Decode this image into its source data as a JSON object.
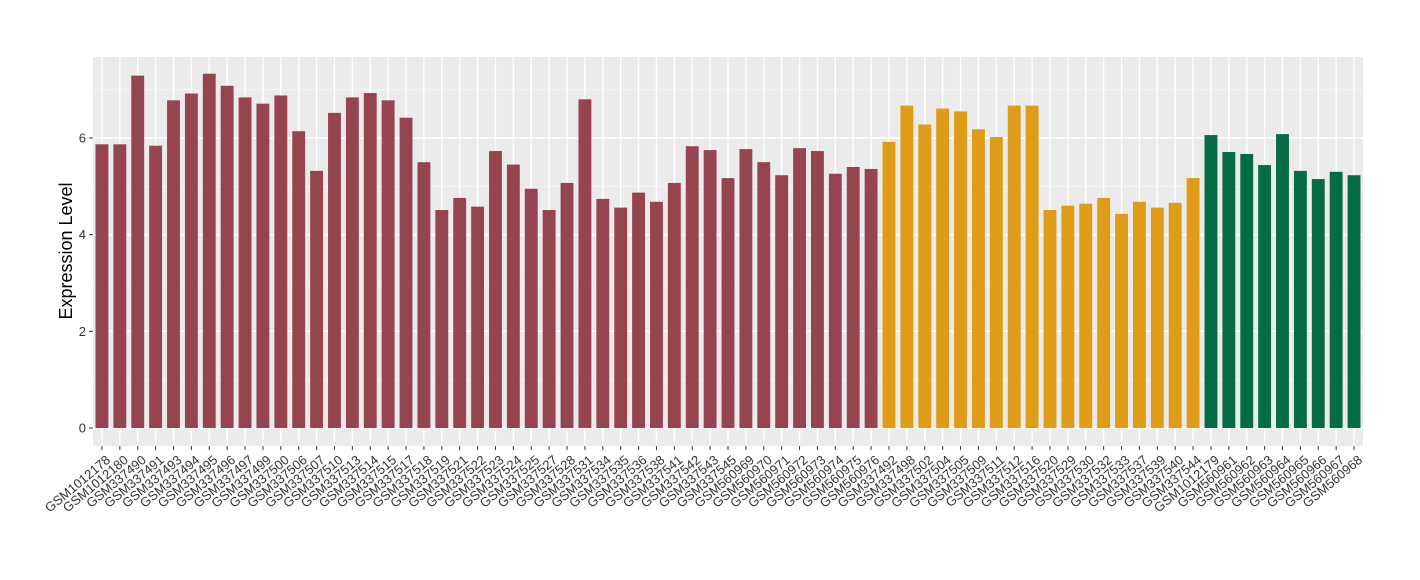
{
  "chart_data": {
    "type": "bar",
    "ylabel": "Expression Level",
    "ylim": [
      0,
      7.6
    ],
    "y_ticks": [
      0,
      2,
      4,
      6
    ],
    "grid": true,
    "colors": {
      "group1": "#974451",
      "group2": "#DE9C19",
      "group3": "#046C45"
    },
    "categories": [
      "GSM1012178",
      "GSM1012180",
      "GSM337490",
      "GSM337491",
      "GSM337493",
      "GSM337494",
      "GSM337495",
      "GSM337496",
      "GSM337497",
      "GSM337499",
      "GSM337500",
      "GSM337506",
      "GSM337507",
      "GSM337510",
      "GSM337513",
      "GSM337514",
      "GSM337515",
      "GSM337517",
      "GSM337518",
      "GSM337519",
      "GSM337521",
      "GSM337522",
      "GSM337523",
      "GSM337524",
      "GSM337525",
      "GSM337527",
      "GSM337528",
      "GSM337531",
      "GSM337534",
      "GSM337535",
      "GSM337536",
      "GSM337538",
      "GSM337541",
      "GSM337542",
      "GSM337543",
      "GSM337545",
      "GSM560969",
      "GSM560970",
      "GSM560971",
      "GSM560972",
      "GSM560973",
      "GSM560974",
      "GSM560975",
      "GSM560976",
      "GSM337492",
      "GSM337498",
      "GSM337502",
      "GSM337504",
      "GSM337505",
      "GSM337509",
      "GSM337511",
      "GSM337512",
      "GSM337516",
      "GSM337520",
      "GSM337529",
      "GSM337530",
      "GSM337532",
      "GSM337533",
      "GSM337537",
      "GSM337539",
      "GSM337540",
      "GSM337544",
      "GSM1012179",
      "GSM560961",
      "GSM560962",
      "GSM560963",
      "GSM560964",
      "GSM560965",
      "GSM560966",
      "GSM560967",
      "GSM560968"
    ],
    "values": [
      5.87,
      5.87,
      7.29,
      5.84,
      6.78,
      6.92,
      7.33,
      7.08,
      6.84,
      6.71,
      6.88,
      6.14,
      5.32,
      6.52,
      6.84,
      6.93,
      6.78,
      6.42,
      5.5,
      4.51,
      4.76,
      4.58,
      5.73,
      5.45,
      4.95,
      4.51,
      5.07,
      6.8,
      4.74,
      4.56,
      4.87,
      4.68,
      5.07,
      5.83,
      5.75,
      5.17,
      5.77,
      5.5,
      5.23,
      5.79,
      5.73,
      5.26,
      5.4,
      5.36,
      5.92,
      6.67,
      6.28,
      6.61,
      6.55,
      6.18,
      6.02,
      6.67,
      6.67,
      4.51,
      4.6,
      4.64,
      4.76,
      4.43,
      4.68,
      4.56,
      4.66,
      5.17,
      6.06,
      5.71,
      5.67,
      5.44,
      6.08,
      5.32,
      5.15,
      5.3,
      5.23
    ],
    "groups": [
      1,
      1,
      1,
      1,
      1,
      1,
      1,
      1,
      1,
      1,
      1,
      1,
      1,
      1,
      1,
      1,
      1,
      1,
      1,
      1,
      1,
      1,
      1,
      1,
      1,
      1,
      1,
      1,
      1,
      1,
      1,
      1,
      1,
      1,
      1,
      1,
      1,
      1,
      1,
      1,
      1,
      1,
      1,
      1,
      2,
      2,
      2,
      2,
      2,
      2,
      2,
      2,
      2,
      2,
      2,
      2,
      2,
      2,
      2,
      2,
      2,
      2,
      3,
      3,
      3,
      3,
      3,
      3,
      3,
      3,
      3
    ]
  }
}
